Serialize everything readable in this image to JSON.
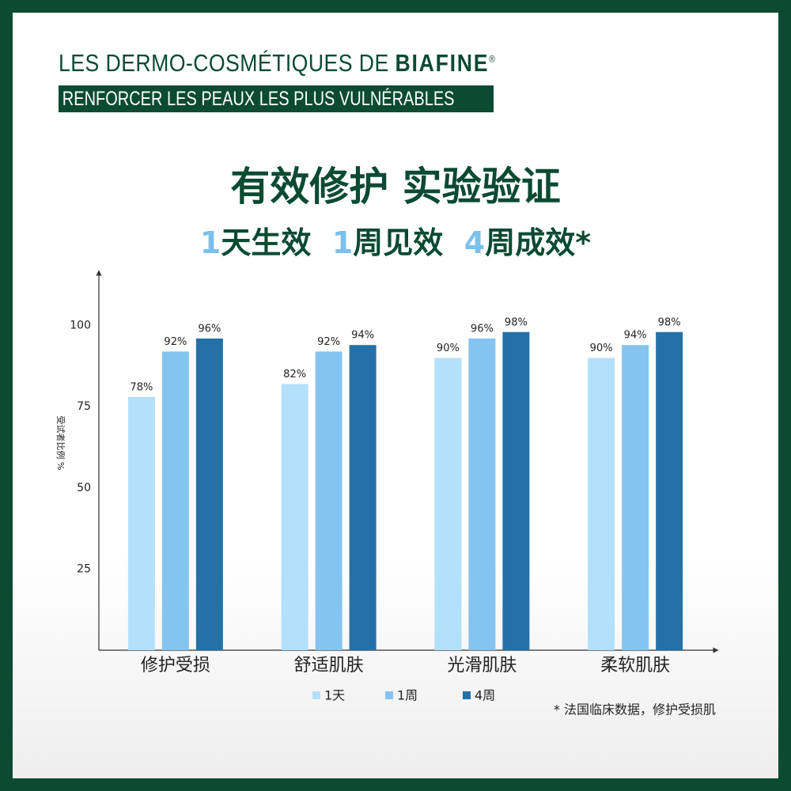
{
  "header": {
    "brand_prefix": "LES DERMO-COSMÉTIQUES DE",
    "brand_name": "BIAFINE",
    "brand_mark": "®",
    "tagline": "RENFORCER LES PEAUX LES PLUS VULNÉRABLES",
    "title": "有效修护 实验验证",
    "subtitle": [
      {
        "number": "1",
        "text": "天生效"
      },
      {
        "number": "1",
        "text": "周见效"
      },
      {
        "number": "4",
        "text": "周成效*"
      }
    ]
  },
  "chart_data": {
    "type": "bar",
    "ylabel": "受试者比例 %",
    "categories": [
      "修护受损",
      "舒适肌肤",
      "光滑肌肤",
      "柔软肌肤"
    ],
    "series": [
      {
        "name": "1天",
        "color": "#b3e0fb",
        "values": [
          78,
          82,
          90,
          90
        ],
        "value_labels": [
          "78%",
          "82%",
          "90%",
          "90%"
        ]
      },
      {
        "name": "1周",
        "color": "#85c4f0",
        "values": [
          92,
          92,
          96,
          94
        ],
        "value_labels": [
          "92%",
          "92%",
          "96%",
          "94%"
        ]
      },
      {
        "name": "4周",
        "color": "#2371a7",
        "values": [
          96,
          94,
          98,
          98
        ],
        "value_labels": [
          "96%",
          "94%",
          "98%",
          "98%"
        ]
      }
    ],
    "ylim": [
      0,
      115
    ],
    "yticks": [
      25,
      50,
      75,
      100
    ],
    "grid": false
  },
  "footnote": "* 法国临床数据，修护受损肌"
}
